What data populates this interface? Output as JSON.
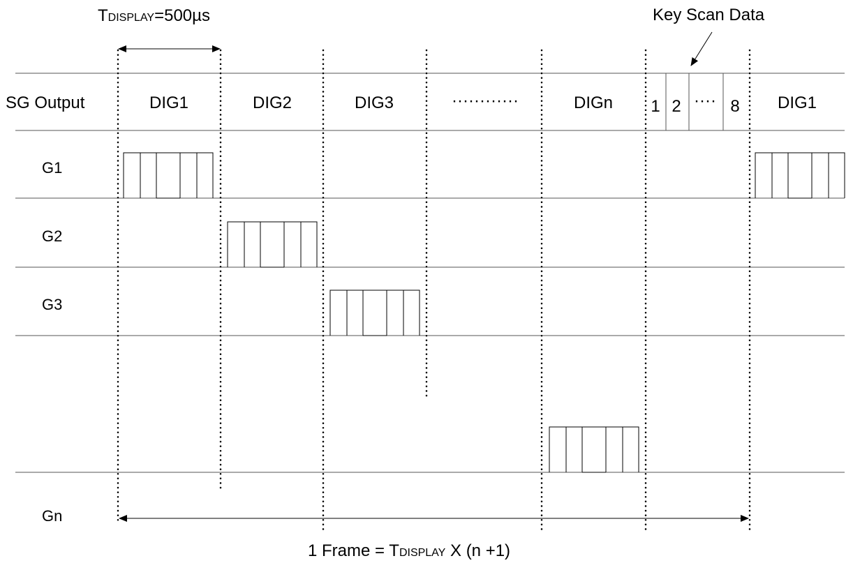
{
  "tdisplay_label": {
    "main": "T",
    "sub": "DISPLAY",
    "value": "=500µs"
  },
  "key_scan_label": "Key Scan Data",
  "sg_output_label": "SG Output",
  "digit_labels": {
    "dig1": "DIG1",
    "dig2": "DIG2",
    "dig3": "DIG3",
    "ellipsis": "············",
    "dign": "DIGn",
    "dig1_repeat": "DIG1"
  },
  "key_scan_slots": {
    "s1": "1",
    "s2": "2",
    "ellipsis": "····",
    "s8": "8"
  },
  "grid_labels": {
    "g1": "G1",
    "g2": "G2",
    "g3": "G3",
    "gn": "Gn"
  },
  "frame_label": {
    "prefix": "1 Frame = T",
    "sub": "DISPLAY",
    "suffix": " X (n +1)"
  }
}
